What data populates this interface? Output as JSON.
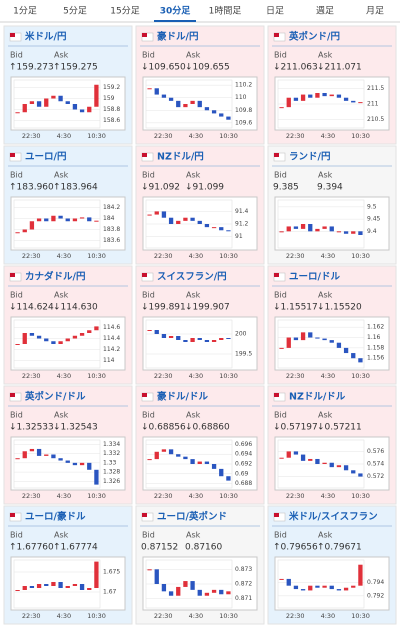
{
  "tabs": [
    "1分足",
    "5分足",
    "15分足",
    "30分足",
    "1時間足",
    "日足",
    "週足",
    "月足"
  ],
  "active_tab": 3,
  "labels": {
    "bid": "Bid",
    "ask": "Ask"
  },
  "time_labels": [
    "22:30",
    "4:30",
    "10:30"
  ],
  "tiles": [
    {
      "name": "米ドル/円",
      "trend": "up",
      "bid": "↑159.273",
      "ask": "↑159.275",
      "chart": {
        "ylim": [
          158.5,
          159.3
        ],
        "yticks": [
          159.2,
          159,
          158.8,
          158.6
        ],
        "closes": [
          158.75,
          158.9,
          158.95,
          158.85,
          159.0,
          159.05,
          158.95,
          158.9,
          158.8,
          158.75,
          158.85,
          159.25
        ]
      }
    },
    {
      "name": "豪ドル/円",
      "trend": "down",
      "bid": "↓109.650",
      "ask": "↓109.655",
      "chart": {
        "ylim": [
          109.55,
          110.25
        ],
        "yticks": [
          110.2,
          110,
          109.8,
          109.6
        ],
        "closes": [
          110.15,
          110.05,
          110.0,
          109.95,
          109.85,
          109.9,
          109.95,
          109.85,
          109.8,
          109.75,
          109.7,
          109.65
        ]
      }
    },
    {
      "name": "英ポンド/円",
      "trend": "down",
      "bid": "↓211.063",
      "ask": "↓211.071",
      "chart": {
        "ylim": [
          210.3,
          211.7
        ],
        "yticks": [
          211.5,
          211,
          210.5
        ],
        "closes": [
          210.9,
          211.2,
          211.1,
          211.3,
          211.2,
          211.35,
          211.25,
          211.3,
          211.2,
          211.1,
          211.05,
          211.06
        ]
      }
    },
    {
      "name": "ユーロ/円",
      "trend": "up",
      "bid": "↑183.960",
      "ask": "↑183.964",
      "chart": {
        "ylim": [
          183.5,
          184.3
        ],
        "yticks": [
          184.2,
          184,
          183.8,
          183.6
        ],
        "closes": [
          183.75,
          183.8,
          183.95,
          184.0,
          183.95,
          184.05,
          184.0,
          183.95,
          184.0,
          184.02,
          183.95,
          183.96
        ]
      }
    },
    {
      "name": "NZドル/円",
      "trend": "down",
      "bid": "↓91.092",
      "ask": "↓91.099",
      "chart": {
        "ylim": [
          90.85,
          91.55
        ],
        "yticks": [
          91.4,
          91.2,
          91
        ],
        "closes": [
          91.35,
          91.4,
          91.3,
          91.2,
          91.25,
          91.3,
          91.25,
          91.2,
          91.15,
          91.15,
          91.1,
          91.09
        ]
      }
    },
    {
      "name": "ランド/円",
      "trend": "flat",
      "bid": "9.385",
      "ask": "9.394",
      "chart": {
        "ylim": [
          9.34,
          9.52
        ],
        "yticks": [
          9.5,
          9.45,
          9.4
        ],
        "closes": [
          9.4,
          9.42,
          9.41,
          9.43,
          9.4,
          9.41,
          9.42,
          9.4,
          9.4,
          9.39,
          9.4,
          9.385
        ]
      }
    },
    {
      "name": "カナダドル/円",
      "trend": "down",
      "bid": "↓114.624",
      "ask": "↓114.630",
      "chart": {
        "ylim": [
          113.9,
          114.7
        ],
        "yticks": [
          114.6,
          114.4,
          114.2,
          114
        ],
        "closes": [
          114.3,
          114.5,
          114.45,
          114.4,
          114.35,
          114.3,
          114.35,
          114.4,
          114.45,
          114.5,
          114.55,
          114.62
        ]
      }
    },
    {
      "name": "スイスフラン/円",
      "trend": "down",
      "bid": "↓199.891",
      "ask": "↓199.907",
      "chart": {
        "ylim": [
          199.2,
          200.3
        ],
        "yticks": [
          200,
          199.5
        ],
        "closes": [
          200.1,
          200.0,
          199.9,
          199.95,
          199.85,
          199.8,
          199.9,
          199.85,
          199.8,
          199.85,
          199.9,
          199.89
        ]
      }
    },
    {
      "name": "ユーロ/ドル",
      "trend": "down",
      "bid": "↓1.15517",
      "ask": "↓1.15520",
      "chart": {
        "ylim": [
          1.1545,
          1.163
        ],
        "yticks": [
          1.162,
          1.16,
          1.158,
          1.156
        ],
        "closes": [
          1.158,
          1.16,
          1.1595,
          1.161,
          1.16,
          1.1598,
          1.1595,
          1.159,
          1.158,
          1.157,
          1.156,
          1.1552
        ]
      }
    },
    {
      "name": "英ポンド/ドル",
      "trend": "down",
      "bid": "↓1.32533",
      "ask": "↓1.32543",
      "chart": {
        "ylim": [
          1.325,
          1.3345
        ],
        "yticks": [
          1.334,
          1.332,
          1.33,
          1.328,
          1.326
        ],
        "closes": [
          1.331,
          1.3325,
          1.333,
          1.3315,
          1.3318,
          1.331,
          1.3305,
          1.33,
          1.3295,
          1.33,
          1.3285,
          1.3253
        ]
      }
    },
    {
      "name": "豪ドル/ドル",
      "trend": "down",
      "bid": "↓0.68856",
      "ask": "↓0.68860",
      "chart": {
        "ylim": [
          0.6875,
          0.6965
        ],
        "yticks": [
          0.696,
          0.694,
          0.692,
          0.69,
          0.688
        ],
        "closes": [
          0.693,
          0.6945,
          0.695,
          0.694,
          0.6935,
          0.693,
          0.692,
          0.6925,
          0.692,
          0.691,
          0.6895,
          0.6886
        ]
      }
    },
    {
      "name": "NZドル/ドル",
      "trend": "down",
      "bid": "↓0.57197",
      "ask": "↓0.57211",
      "chart": {
        "ylim": [
          0.5705,
          0.5775
        ],
        "yticks": [
          0.576,
          0.574,
          0.572
        ],
        "closes": [
          0.575,
          0.576,
          0.5755,
          0.5745,
          0.5748,
          0.574,
          0.5742,
          0.5735,
          0.5738,
          0.573,
          0.5725,
          0.572
        ]
      }
    },
    {
      "name": "ユーロ/豪ドル",
      "trend": "up",
      "bid": "↑1.67760",
      "ask": "↑1.67774",
      "chart": {
        "ylim": [
          1.6665,
          1.6775
        ],
        "yticks": [
          1.675,
          1.67
        ],
        "closes": [
          1.6705,
          1.6715,
          1.671,
          1.672,
          1.6715,
          1.6725,
          1.671,
          1.6715,
          1.672,
          1.6705,
          1.671,
          1.6776
        ]
      }
    },
    {
      "name": "ユーロ/英ポンド",
      "trend": "flat",
      "bid": "0.87152",
      "ask": "0.87160",
      "chart": {
        "ylim": [
          0.8705,
          0.8735
        ],
        "yticks": [
          0.873,
          0.872,
          0.871
        ],
        "closes": [
          0.873,
          0.872,
          0.8715,
          0.8712,
          0.8718,
          0.8722,
          0.8716,
          0.8712,
          0.8714,
          0.8716,
          0.8713,
          0.8715
        ]
      }
    },
    {
      "name": "米ドル/スイスフラン",
      "trend": "up",
      "bid": "↑0.79656",
      "ask": "↑0.79671",
      "chart": {
        "ylim": [
          0.7905,
          0.797
        ],
        "yticks": [
          0.794,
          0.792
        ],
        "closes": [
          0.7945,
          0.7935,
          0.793,
          0.7928,
          0.7935,
          0.7932,
          0.7935,
          0.793,
          0.7928,
          0.7932,
          0.7935,
          0.7966
        ]
      }
    }
  ]
}
